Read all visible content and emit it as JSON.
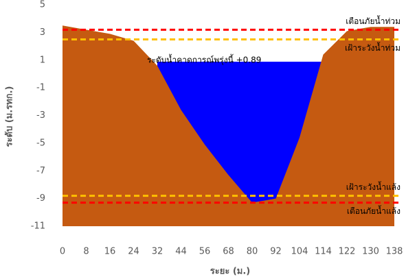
{
  "chart_data": {
    "type": "area",
    "y_label": "ระดับ (ม.รทก.)",
    "x_label": "ระยะ (ม.)",
    "categories": [
      "0",
      "8",
      "16",
      "24",
      "32",
      "44",
      "56",
      "68",
      "80",
      "92",
      "104",
      "114",
      "122",
      "130",
      "138"
    ],
    "series": [
      {
        "color": "#0000ff",
        "values": [
          null,
          null,
          null,
          null,
          0.89,
          0.89,
          0.89,
          0.89,
          0.89,
          0.89,
          0.89,
          0.89,
          null,
          null,
          null
        ]
      },
      {
        "color": "#c55a11",
        "values": [
          3.5,
          3.2,
          2.9,
          2.4,
          0.6,
          -2.6,
          -5.1,
          -7.3,
          -9.3,
          -9.0,
          -4.6,
          1.4,
          3.1,
          3.4,
          3.4
        ]
      }
    ],
    "annotation": "ระดับน้ำคาดการณ์พรุ่งนี้ +0.89",
    "lines": [
      {
        "label": "เตือนภัยน้ำท่วม",
        "value": 3.2,
        "color": "#ff0000"
      },
      {
        "label": "เฝ้าระวังน้ำท่วม",
        "value": 2.5,
        "color": "#ffc000"
      },
      {
        "label": "เฝ้าระวังน้ำแล้ง",
        "value": -8.8,
        "color": "#ffc000"
      },
      {
        "label": "เตือนภัยน้ำแล้ง",
        "value": -9.3,
        "color": "#ff0000"
      }
    ],
    "ylim": [
      -11,
      5
    ],
    "yticks": [
      -11,
      -9,
      -7,
      -5,
      -3,
      -1,
      1,
      3,
      5
    ],
    "grid": false
  }
}
